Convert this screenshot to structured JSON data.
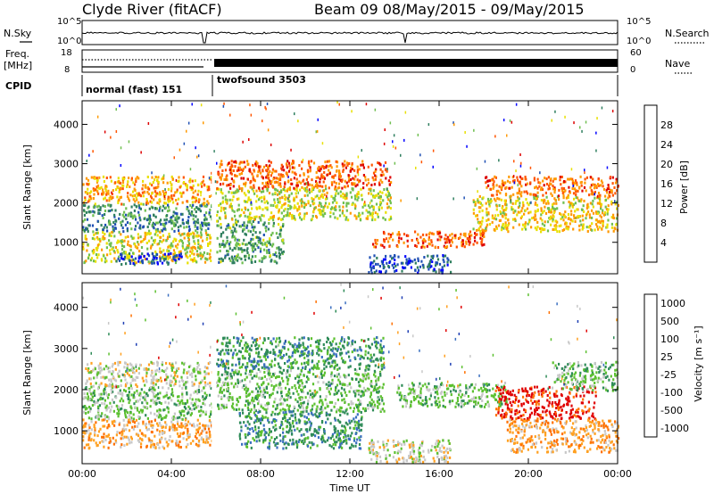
{
  "header": {
    "title": "Clyde River (fitACF)",
    "beam_info": "Beam 09  08/May/2015 - 09/May/2015"
  },
  "status_panel": {
    "nsky_label": "N.Sky",
    "nsky_ticks": [
      "10^5",
      "10^0"
    ],
    "nsearch_label": "N.Search",
    "nsearch_ticks": [
      "10^5",
      "10^0"
    ],
    "freq_label": "Freq.",
    "freq_unit": "[MHz]",
    "freq_ticks": [
      "18",
      "8"
    ],
    "nave_label": "Nave",
    "nave_ticks": [
      "60",
      "0"
    ],
    "cpid_label": "CPID",
    "cpid_segments": [
      {
        "label": "normal (fast) 151",
        "start_hour": 0,
        "end_hour": 5.85
      },
      {
        "label": "twofsound 3503",
        "start_hour": 5.85,
        "end_hour": 24
      }
    ]
  },
  "chart_data": [
    {
      "type": "heatmap",
      "name": "power",
      "ylabel": "Slant Range [km]",
      "ylim": [
        200,
        4600
      ],
      "yticks": [
        1000,
        2000,
        3000,
        4000
      ],
      "colorbar": {
        "label": "Power [dB]",
        "ticks": [
          4,
          8,
          12,
          16,
          20,
          24,
          28
        ],
        "range": [
          0,
          32
        ],
        "colors": [
          "#0000ff",
          "#1f4fb4",
          "#2f7f5f",
          "#6fbf50",
          "#e8e000",
          "#ff9900",
          "#ff5500",
          "#dd0000"
        ]
      },
      "scatter_regions": [
        {
          "t0": 0.0,
          "t1": 5.8,
          "r0": 1300,
          "r1": 2000,
          "level": 22
        },
        {
          "t0": 0.0,
          "t1": 5.8,
          "r0": 500,
          "r1": 1300,
          "level": 14
        },
        {
          "t0": 0.0,
          "t1": 5.8,
          "r0": 2000,
          "r1": 2700,
          "level": 10
        },
        {
          "t0": 1.5,
          "t1": 4.5,
          "r0": 450,
          "r1": 750,
          "level": 27
        },
        {
          "t0": 6.0,
          "t1": 13.8,
          "r0": 1600,
          "r1": 2400,
          "level": 15
        },
        {
          "t0": 6.0,
          "t1": 9.0,
          "r0": 500,
          "r1": 1600,
          "level": 20
        },
        {
          "t0": 6.0,
          "t1": 13.8,
          "r0": 2400,
          "r1": 3100,
          "level": 7
        },
        {
          "t0": 12.8,
          "t1": 16.5,
          "r0": 250,
          "r1": 700,
          "level": 26
        },
        {
          "t0": 13.0,
          "t1": 18.0,
          "r0": 900,
          "r1": 1300,
          "level": 6
        },
        {
          "t0": 17.5,
          "t1": 24.0,
          "r0": 1300,
          "r1": 2200,
          "level": 13
        },
        {
          "t0": 18.0,
          "t1": 24.0,
          "r0": 2200,
          "r1": 2700,
          "level": 7
        }
      ]
    },
    {
      "type": "heatmap",
      "name": "velocity",
      "xlabel": "Time UT",
      "ylabel": "Slant Range [km]",
      "ylim": [
        200,
        4600
      ],
      "yticks": [
        1000,
        2000,
        3000,
        4000
      ],
      "xticks": [
        "00:00",
        "04:00",
        "08:00",
        "12:00",
        "16:00",
        "20:00",
        "00:00"
      ],
      "xlim_hours": [
        0,
        24
      ],
      "colorbar": {
        "label": "Velocity [m s⁻¹]",
        "ticks": [
          "1000",
          "500",
          "100",
          "25",
          "-25",
          "-100",
          "-500",
          "-1000"
        ],
        "colors": [
          "#1f3fb4",
          "#3a6fc0",
          "#2e8b57",
          "#5cc030",
          "#c8c8c8",
          "#ffa020",
          "#ff7000",
          "#e00000"
        ]
      },
      "scatter_regions": [
        {
          "t0": 0.0,
          "t1": 5.8,
          "r0": 1300,
          "r1": 2100,
          "level": 4
        },
        {
          "t0": 0.0,
          "t1": 5.8,
          "r0": 600,
          "r1": 1300,
          "level": 2
        },
        {
          "t0": 0.0,
          "t1": 5.8,
          "r0": 2100,
          "r1": 2700,
          "level": 3
        },
        {
          "t0": 6.0,
          "t1": 13.5,
          "r0": 1500,
          "r1": 2500,
          "level": 4
        },
        {
          "t0": 7.0,
          "t1": 12.5,
          "r0": 600,
          "r1": 1500,
          "level": 5
        },
        {
          "t0": 6.0,
          "t1": 13.5,
          "r0": 2500,
          "r1": 3300,
          "level": 5
        },
        {
          "t0": 12.8,
          "t1": 16.5,
          "r0": 250,
          "r1": 800,
          "level": 3
        },
        {
          "t0": 14.0,
          "t1": 19.0,
          "r0": 1600,
          "r1": 2200,
          "level": 4
        },
        {
          "t0": 18.5,
          "t1": 23.0,
          "r0": 1300,
          "r1": 2100,
          "level": 0
        },
        {
          "t0": 19.0,
          "t1": 24.0,
          "r0": 500,
          "r1": 1300,
          "level": 2
        },
        {
          "t0": 21.0,
          "t1": 24.0,
          "r0": 2000,
          "r1": 2700,
          "level": 4
        }
      ]
    }
  ]
}
